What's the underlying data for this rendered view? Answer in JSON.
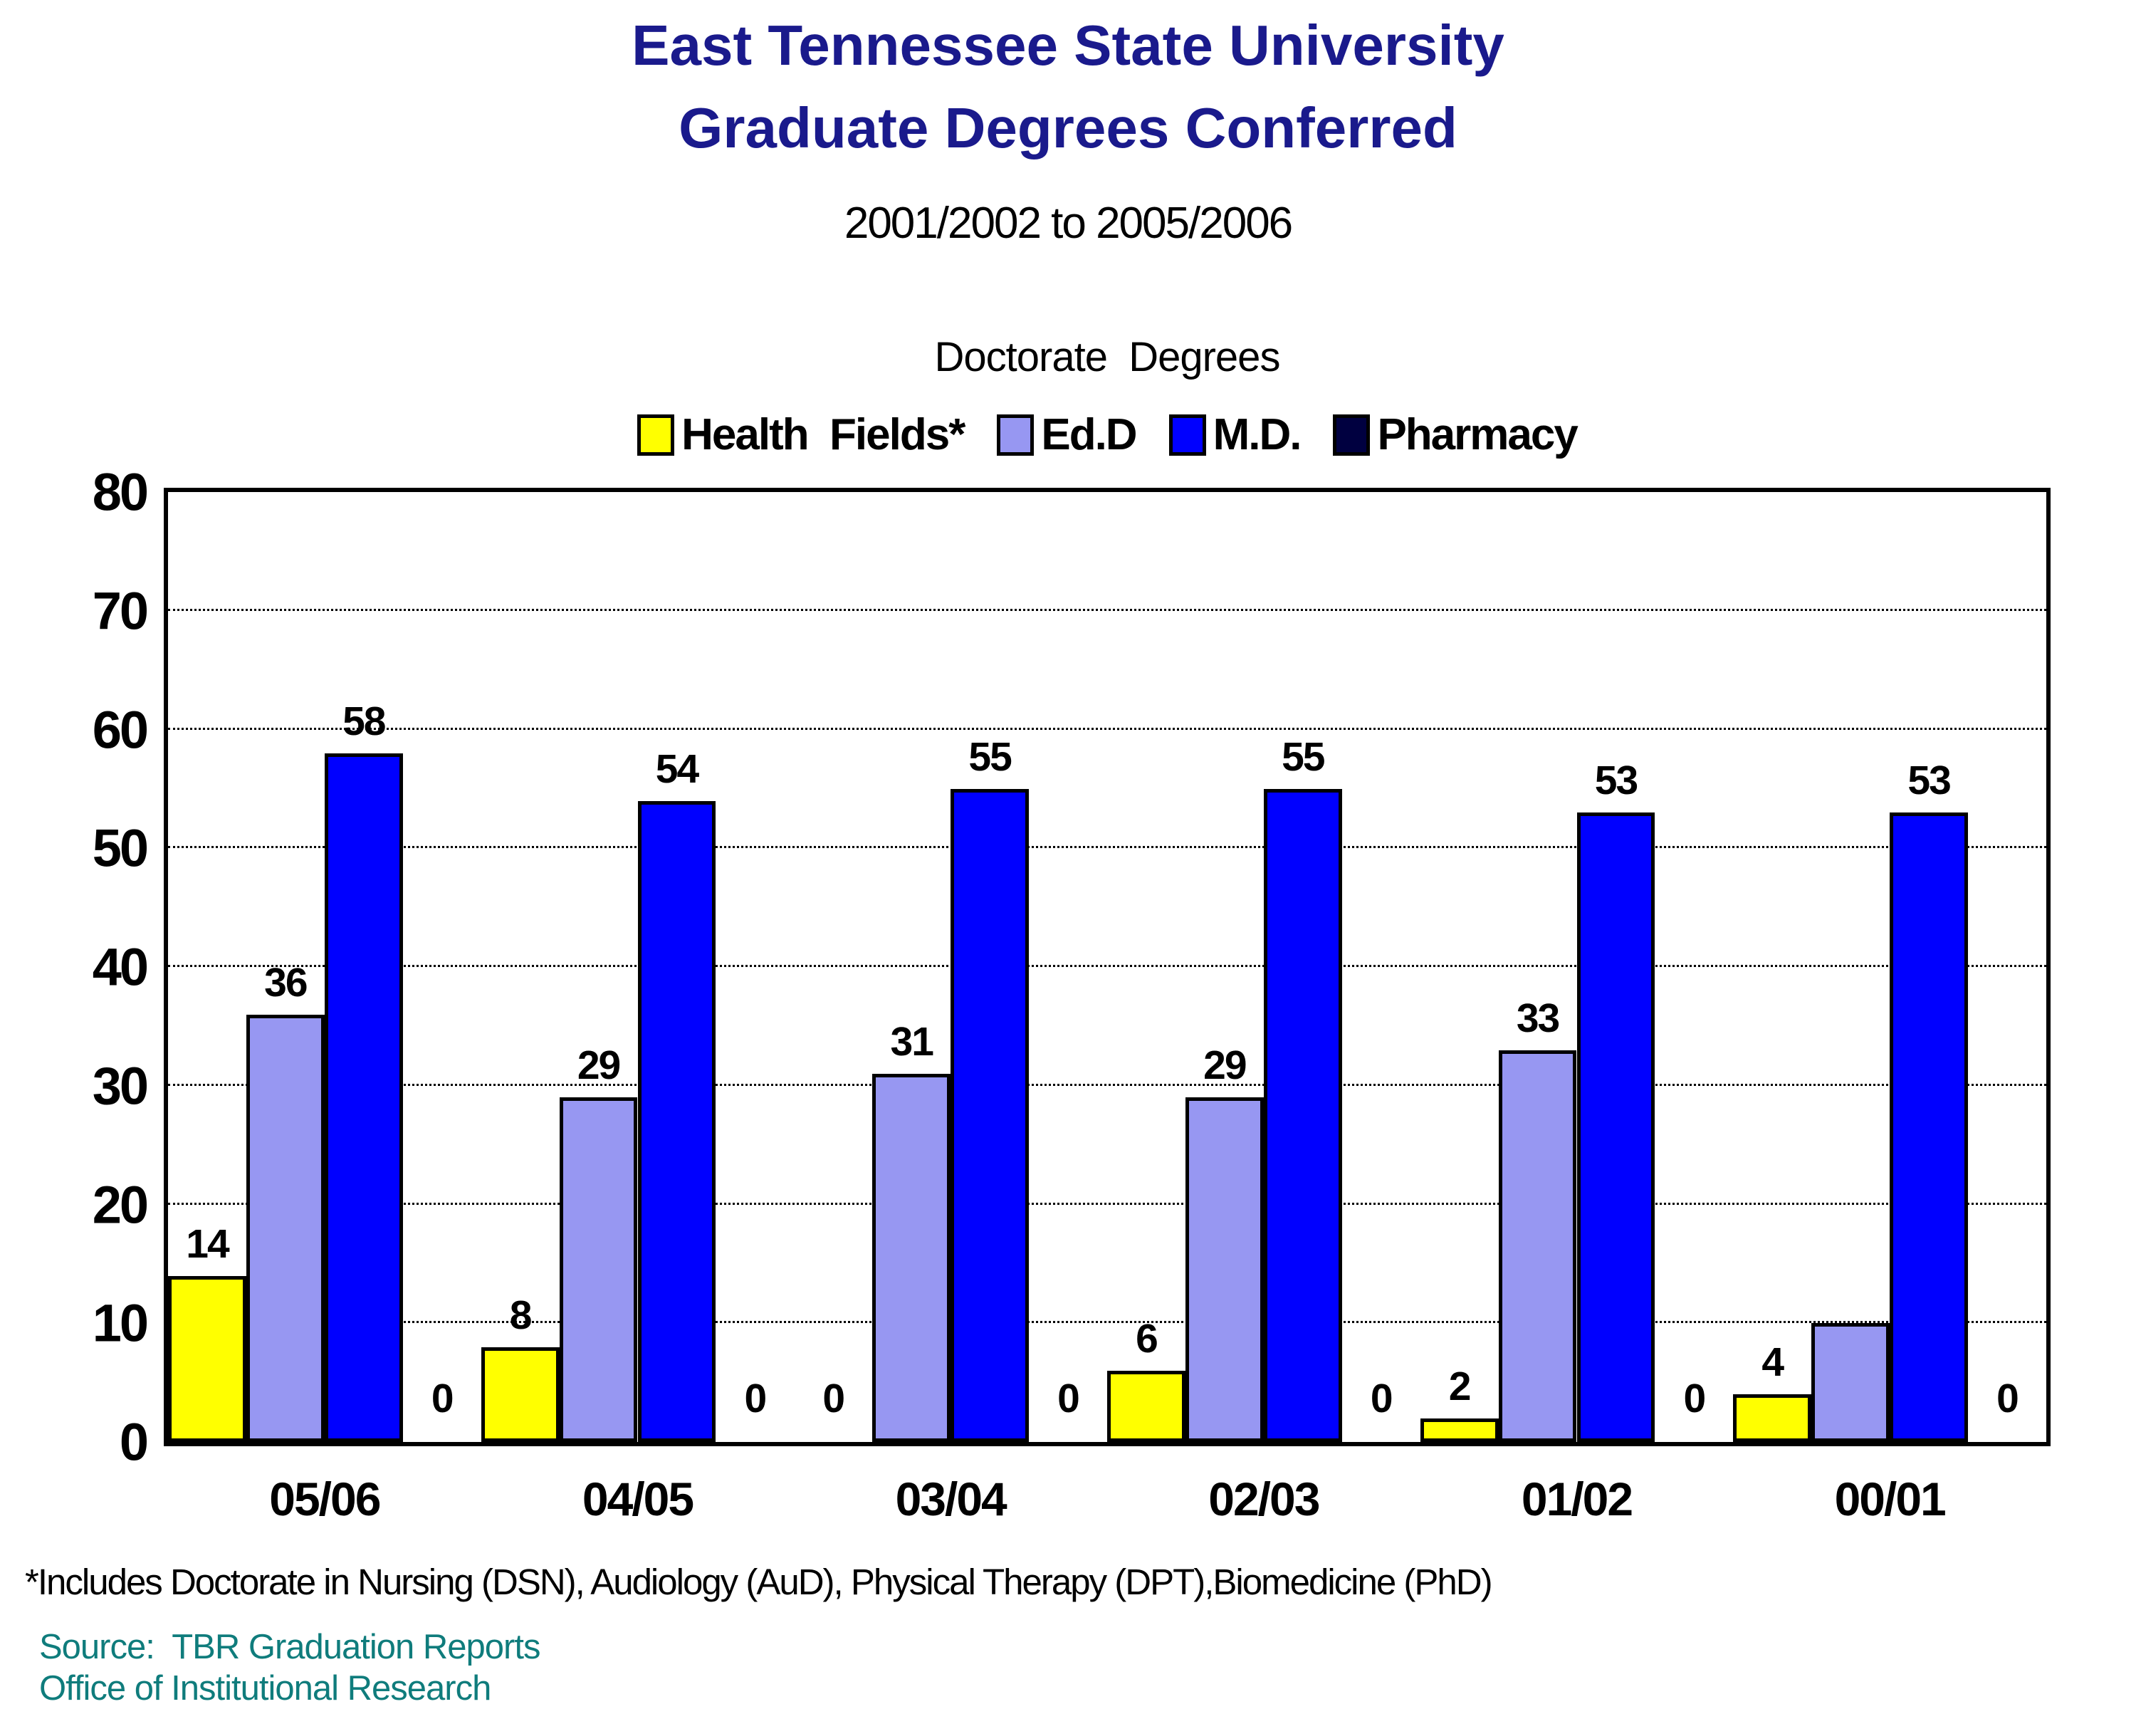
{
  "header": {
    "title_line1": "East Tennessee State University",
    "title_line2": "Graduate Degrees Conferred",
    "subtitle": "2001/2002 to 2005/2006",
    "title_color": "#1A1A8C"
  },
  "chart_data": {
    "type": "bar",
    "title": "Doctorate  Degrees",
    "categories": [
      "05/06",
      "04/05",
      "03/04",
      "02/03",
      "01/02",
      "00/01"
    ],
    "series": [
      {
        "name": "Health  Fields*",
        "color": "#FFFF00",
        "values": [
          14,
          8,
          0,
          6,
          2,
          4
        ],
        "labels": [
          "14",
          "8",
          "0",
          "6",
          "2",
          "4"
        ]
      },
      {
        "name": "Ed.D",
        "color": "#9797F2",
        "values": [
          36,
          29,
          31,
          29,
          33,
          10
        ],
        "labels": [
          "36",
          "29",
          "31",
          "29",
          "33",
          ""
        ]
      },
      {
        "name": "M.D.",
        "color": "#0000FF",
        "values": [
          58,
          54,
          55,
          55,
          53,
          53
        ],
        "labels": [
          "58",
          "54",
          "55",
          "55",
          "53",
          "53"
        ]
      },
      {
        "name": "Pharmacy",
        "color": "#000040",
        "values": [
          0,
          0,
          0,
          0,
          0,
          0
        ],
        "labels": [
          "0",
          "0",
          "0",
          "0",
          "0",
          "0"
        ]
      }
    ],
    "xlabel": "",
    "ylabel": "",
    "ylim": [
      0,
      80
    ],
    "ytick_step": 10,
    "yticks": [
      0,
      10,
      20,
      30,
      40,
      50,
      60,
      70,
      80
    ],
    "grid": "horizontal-dotted",
    "legend_position": "top"
  },
  "footnote": "*Includes Doctorate in Nursing (DSN), Audiology (AuD), Physical Therapy (DPT),Biomedicine (PhD)",
  "source": {
    "line1": "Source:  TBR Graduation Reports",
    "line2": "Office of Institutional Research",
    "color": "#0F7C7C"
  }
}
